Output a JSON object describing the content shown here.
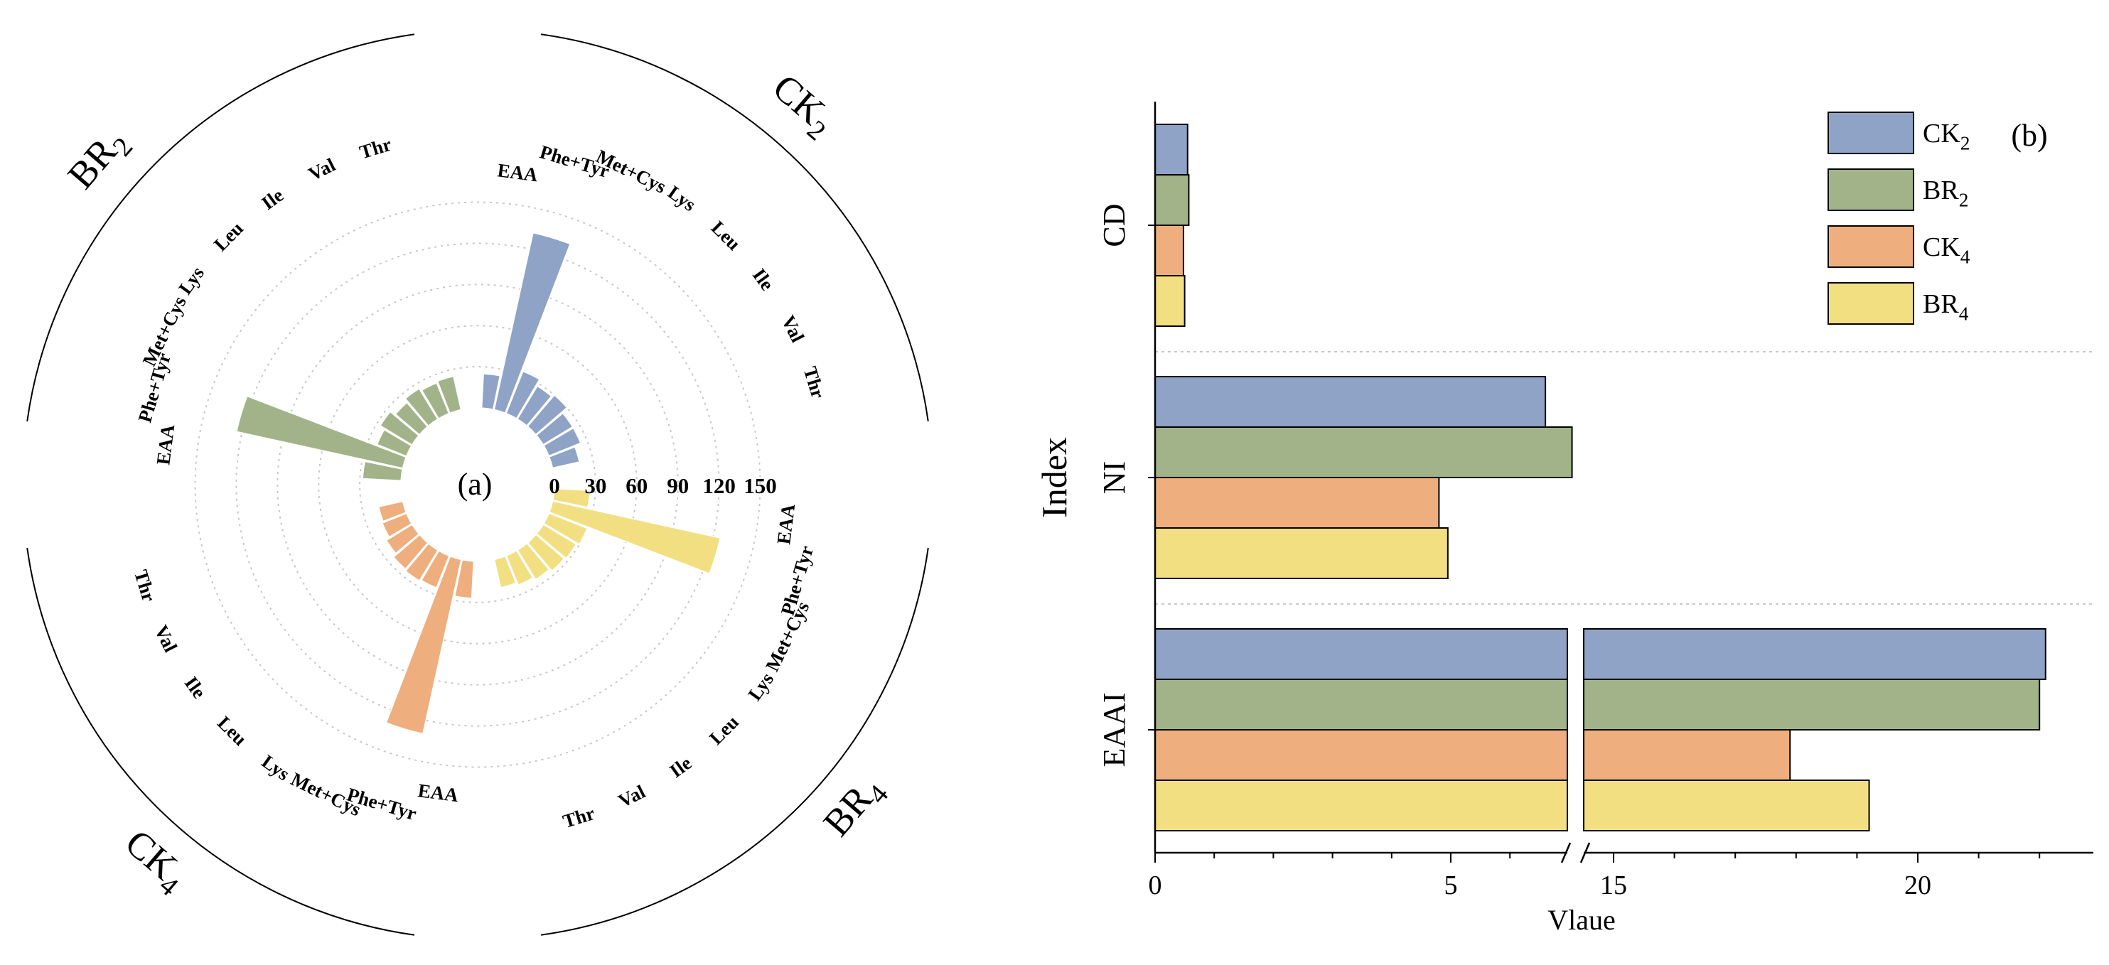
{
  "chart_data": [
    {
      "type": "radial-bar",
      "panel_label": "(a)",
      "radial_ticks": [
        "0",
        "30",
        "60",
        "90",
        "120",
        "150"
      ],
      "radial_range": [
        0,
        150
      ],
      "categories": [
        "EAA",
        "Phe+Tyr",
        "Met+Cys",
        "Lys",
        "Leu",
        "Ile",
        "Val",
        "Thr"
      ],
      "groups": [
        {
          "name": "CK2",
          "name_main": "CK",
          "name_sub": "2",
          "color": "#8ea3c5",
          "values": [
            25,
            132,
            33,
            28,
            30,
            25,
            25,
            20
          ]
        },
        {
          "name": "BR2",
          "name_main": "BR",
          "name_sub": "2",
          "color": "#a2b38a",
          "values": [
            28,
            124,
            23,
            27,
            23,
            26,
            24,
            25
          ]
        },
        {
          "name": "CK4",
          "name_main": "CK",
          "name_sub": "4",
          "color": "#eeae7e",
          "values": [
            27,
            130,
            25,
            26,
            25,
            22,
            19,
            18
          ]
        },
        {
          "name": "BR4",
          "name_main": "BR",
          "name_sub": "4",
          "color": "#f2df82",
          "values": [
            26,
            125,
            30,
            28,
            27,
            25,
            23,
            21
          ]
        }
      ]
    },
    {
      "type": "bar-horizontal",
      "panel_label": "(b)",
      "ylabel": "Index",
      "xlabel": "Vlaue",
      "categories": [
        "CD",
        "NI",
        "EAAI"
      ],
      "x_ticks_left": [
        "0",
        "5"
      ],
      "x_ticks_right": [
        "15",
        "20"
      ],
      "axis_break": [
        7.2,
        14.3
      ],
      "legend": [
        {
          "main": "CK",
          "sub": "2"
        },
        {
          "main": "BR",
          "sub": "2"
        },
        {
          "main": "CK",
          "sub": "4"
        },
        {
          "main": "BR",
          "sub": "4"
        }
      ],
      "series": [
        {
          "name": "CK2",
          "color": "#8ea3c5",
          "values": [
            0.55,
            6.6,
            22.1
          ]
        },
        {
          "name": "BR2",
          "color": "#a2b38a",
          "values": [
            0.57,
            7.05,
            22.0
          ]
        },
        {
          "name": "CK4",
          "color": "#eeae7e",
          "values": [
            0.48,
            4.8,
            17.9
          ]
        },
        {
          "name": "BR4",
          "color": "#f2df82",
          "values": [
            0.5,
            4.95,
            19.2
          ]
        }
      ]
    }
  ]
}
